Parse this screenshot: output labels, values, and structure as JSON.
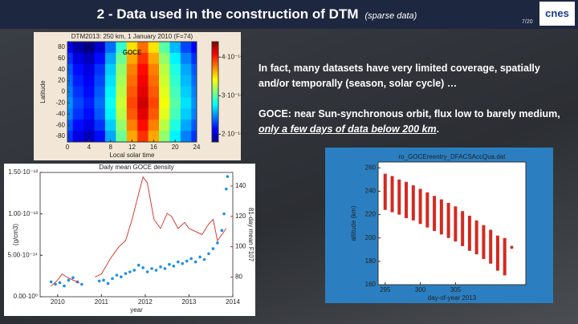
{
  "header": {
    "title": "2 - Data used in the construction of DTM",
    "subtitle": "(sparse data)",
    "page": "7/20",
    "logo": "cnes"
  },
  "text": {
    "paragraph_1": "In fact, many datasets have very limited coverage, spatially and/or temporally (season, solar cycle) …",
    "paragraph_2": [
      "GOCE: near Sun-synchronous orbit, flux low to barely medium, ",
      "only a few days of data below 200 km",
      "."
    ]
  },
  "footer": {
    "logo": "zoom"
  },
  "chart_data": [
    {
      "type": "heatmap",
      "title": "DTM2013: 250 km, 1 January 2010 (F=74)",
      "xlabel": "Local solar time",
      "ylabel": "Latitude",
      "annotation": "GOCE",
      "x": [
        0,
        2,
        4,
        6,
        8,
        10,
        12,
        14,
        16,
        18,
        20,
        22,
        24
      ],
      "y": [
        80,
        60,
        40,
        20,
        0,
        -20,
        -40,
        -60,
        -80
      ],
      "z": [
        [
          2.1e-14,
          1.9e-14,
          1.8e-14,
          2e-14,
          2.4e-14,
          2.9e-14,
          3.5e-14,
          3.8e-14,
          3.5e-14,
          3e-14,
          2.6e-14,
          2.3e-14,
          2.1e-14
        ],
        [
          2.25e-14,
          2.05e-14,
          1.95e-14,
          2.15e-14,
          2.55e-14,
          3.05e-14,
          3.65e-14,
          3.95e-14,
          3.65e-14,
          3.15e-14,
          2.75e-14,
          2.45e-14,
          2.25e-14
        ],
        [
          2.35e-14,
          2.15e-14,
          2.05e-14,
          2.25e-14,
          2.65e-14,
          3.15e-14,
          3.75e-14,
          4.05e-14,
          3.75e-14,
          3.25e-14,
          2.85e-14,
          2.55e-14,
          2.35e-14
        ],
        [
          2.4e-14,
          2.2e-14,
          2.1e-14,
          2.3e-14,
          2.7e-14,
          3.2e-14,
          3.8e-14,
          4.1e-14,
          3.8e-14,
          3.3e-14,
          2.9e-14,
          2.6e-14,
          2.4e-14
        ],
        [
          2.45e-14,
          2.25e-14,
          2.15e-14,
          2.35e-14,
          2.75e-14,
          3.25e-14,
          3.85e-14,
          4.15e-14,
          3.85e-14,
          3.35e-14,
          2.95e-14,
          2.65e-14,
          2.45e-14
        ],
        [
          2.5e-14,
          2.3e-14,
          2.2e-14,
          2.4e-14,
          2.8e-14,
          3.3e-14,
          3.9e-14,
          4.2e-14,
          3.9e-14,
          3.4e-14,
          3e-14,
          2.7e-14,
          2.5e-14
        ],
        [
          2.45e-14,
          2.25e-14,
          2.15e-14,
          2.35e-14,
          2.75e-14,
          3.25e-14,
          3.85e-14,
          4.15e-14,
          3.85e-14,
          3.35e-14,
          2.95e-14,
          2.65e-14,
          2.45e-14
        ],
        [
          2.35e-14,
          2.15e-14,
          2.05e-14,
          2.25e-14,
          2.65e-14,
          3.15e-14,
          3.75e-14,
          4.05e-14,
          3.75e-14,
          3.25e-14,
          2.85e-14,
          2.55e-14,
          2.35e-14
        ],
        [
          2.25e-14,
          2.05e-14,
          1.95e-14,
          2.15e-14,
          2.55e-14,
          3.05e-14,
          3.65e-14,
          3.95e-14,
          3.65e-14,
          3.15e-14,
          2.75e-14,
          2.45e-14,
          2.25e-14
        ]
      ],
      "xlim": [
        0,
        24
      ],
      "xticks": [
        0,
        4,
        8,
        12,
        16,
        20,
        24
      ],
      "ylim": [
        -90,
        90
      ],
      "yticks": [
        -80,
        -60,
        -40,
        -20,
        0,
        20,
        40,
        60,
        80
      ],
      "zlim": [
        1.8e-14,
        4.4e-14
      ],
      "zticks": [
        {
          "value": 2e-14,
          "label": "2·10⁻¹⁴"
        },
        {
          "value": 3e-14,
          "label": "3·10⁻¹⁴"
        },
        {
          "value": 4e-14,
          "label": "4·10⁻¹⁴"
        }
      ],
      "colormap": "jet"
    },
    {
      "type": "combo",
      "title": "Daily mean GOCE density",
      "xlabel": "year",
      "ylabel": "(g/cm3)",
      "y2label": "81-day mean F107",
      "series": [
        {
          "type": "scatter",
          "color": "#1e8fe6",
          "x": [
            2009.85,
            2009.95,
            2010.05,
            2010.15,
            2010.25,
            2010.35,
            2010.45,
            2010.55,
            2010.95,
            2011.05,
            2011.15,
            2011.25,
            2011.35,
            2011.45,
            2011.55,
            2011.65,
            2011.75,
            2011.85,
            2011.95,
            2012.05,
            2012.15,
            2012.25,
            2012.35,
            2012.45,
            2012.55,
            2012.65,
            2012.75,
            2012.85,
            2012.95,
            2013.05,
            2013.15,
            2013.25,
            2013.35,
            2013.45,
            2013.55,
            2013.65,
            2013.75,
            2013.8,
            2013.85,
            2013.88
          ],
          "values": [
            1.8e-14,
            1.5e-14,
            1.7e-14,
            1.3e-14,
            2e-14,
            2.3e-14,
            1.8e-14,
            1.5e-14,
            1.9e-14,
            2e-14,
            1.6e-14,
            2.2e-14,
            2.6e-14,
            2.4e-14,
            2.8e-14,
            3e-14,
            3.2e-14,
            3.8e-14,
            3.5e-14,
            3e-14,
            3.4e-14,
            3.2e-14,
            3.6e-14,
            3.4e-14,
            3.9e-14,
            3.7e-14,
            4.2e-14,
            4e-14,
            4.3e-14,
            4.6e-14,
            4.2e-14,
            4.8e-14,
            4.5e-14,
            5.2e-14,
            5.8e-14,
            6.5e-14,
            8e-14,
            1e-13,
            1.3e-13,
            1.45e-13
          ]
        },
        {
          "type": "line",
          "color": "#d42a20",
          "axis": "y2",
          "x": [
            2009.85,
            2010.0,
            2010.1,
            2010.2,
            2010.35,
            2010.5,
            2010.7,
            2010.85,
            2011.0,
            2011.2,
            2011.4,
            2011.55,
            2011.7,
            2011.85,
            2011.95,
            2012.05,
            2012.2,
            2012.35,
            2012.5,
            2012.6,
            2012.75,
            2012.9,
            2013.0,
            2013.15,
            2013.3,
            2013.45,
            2013.55,
            2013.65,
            2013.75,
            2013.85
          ],
          "values": [
            74,
            78,
            82,
            80,
            78,
            76,
            null,
            80,
            82,
            92,
            100,
            104,
            118,
            135,
            146,
            142,
            118,
            112,
            122,
            120,
            112,
            116,
            112,
            110,
            108,
            115,
            118,
            104,
            108,
            112
          ]
        }
      ],
      "xlim": [
        2009.6,
        2014.0
      ],
      "xticks": [
        2010,
        2011,
        2012,
        2013,
        2014
      ],
      "ylim": [
        0,
        1.5e-13
      ],
      "yticks": [
        {
          "value": 0,
          "label": "0.00·10⁰"
        },
        {
          "value": 5e-14,
          "label": "5.00·10⁻¹⁴"
        },
        {
          "value": 1e-13,
          "label": "1.00·10⁻¹³"
        },
        {
          "value": 1.5e-13,
          "label": "1.50·10⁻¹³"
        }
      ],
      "y2lim": [
        67,
        149
      ],
      "y2ticks": [
        80,
        100,
        120,
        140
      ]
    },
    {
      "type": "range",
      "title": "ro_GOCEreentry_DFACSAccQua.dat",
      "xlabel": "day-of-year 2013",
      "ylabel": "altitude (km)",
      "color": "#d42a20",
      "x": [
        295,
        296,
        297,
        298,
        299,
        300,
        301,
        302,
        303,
        304,
        305,
        306,
        307,
        308,
        309,
        310,
        311,
        312
      ],
      "low": [
        224,
        222,
        220,
        217,
        215,
        212,
        209,
        206,
        203,
        200,
        197,
        193,
        189,
        186,
        182,
        178,
        172,
        168
      ],
      "high": [
        255,
        253,
        250,
        248,
        245,
        242,
        239,
        236,
        233,
        230,
        227,
        223,
        219,
        215,
        211,
        207,
        202,
        200
      ],
      "points": {
        "x": [
          313
        ],
        "y": [
          192
        ]
      },
      "xlim": [
        294,
        315
      ],
      "xticks": [
        295,
        300,
        305
      ],
      "ylim": [
        160,
        265
      ],
      "yticks": [
        160,
        180,
        200,
        220,
        240,
        260
      ]
    }
  ]
}
